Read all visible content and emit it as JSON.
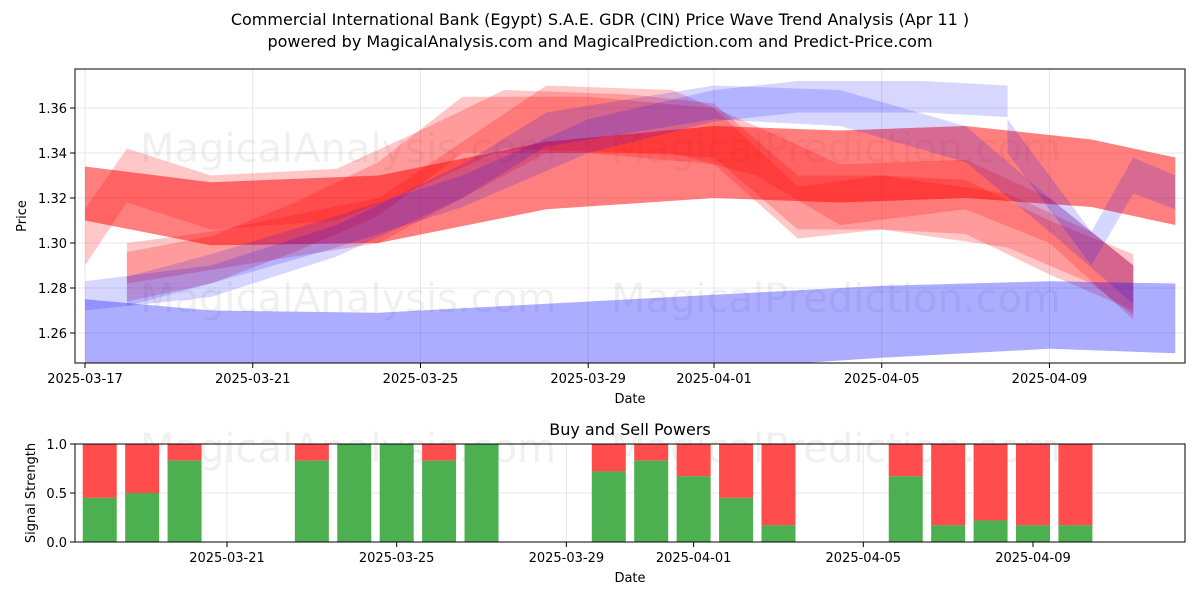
{
  "header": {
    "title": "Commercial International Bank (Egypt) S.A.E. GDR (CIN) Price Wave Trend Analysis (Apr 11 )",
    "subtitle": "powered by MagicalAnalysis.com and MagicalPrediction.com and Predict-Price.com"
  },
  "watermarks": {
    "left": "MagicalAnalysis.com",
    "right": "MagicalPrediction.com"
  },
  "colors": {
    "red_band": "#ff0000",
    "blue_band": "#0000ff",
    "buy_bar": "#4caf50",
    "sell_bar": "#ff4d4d"
  },
  "chart_data": [
    {
      "type": "area",
      "title": "",
      "xlabel": "Date",
      "ylabel": "Price",
      "x_ticks": [
        "2025-03-17",
        "2025-03-21",
        "2025-03-25",
        "2025-03-29",
        "2025-04-01",
        "2025-04-05",
        "2025-04-09"
      ],
      "y_ticks": [
        "1.26",
        "1.28",
        "1.30",
        "1.32",
        "1.34",
        "1.36"
      ],
      "xlim": [
        "2025-03-17",
        "2025-04-12"
      ],
      "ylim": [
        1.246,
        1.376
      ],
      "grid": true,
      "series": [
        {
          "color": "red",
          "upper": [
            [
              "2025-03-17",
              1.334
            ],
            [
              "2025-03-20",
              1.327
            ],
            [
              "2025-03-24",
              1.33
            ],
            [
              "2025-03-28",
              1.345
            ],
            [
              "2025-04-01",
              1.352
            ],
            [
              "2025-04-04",
              1.35
            ],
            [
              "2025-04-07",
              1.352
            ],
            [
              "2025-04-10",
              1.346
            ],
            [
              "2025-04-12",
              1.338
            ]
          ],
          "lower": [
            [
              "2025-03-17",
              1.31
            ],
            [
              "2025-03-20",
              1.299
            ],
            [
              "2025-03-24",
              1.3
            ],
            [
              "2025-03-28",
              1.315
            ],
            [
              "2025-04-01",
              1.32
            ],
            [
              "2025-04-04",
              1.318
            ],
            [
              "2025-04-07",
              1.32
            ],
            [
              "2025-04-10",
              1.316
            ],
            [
              "2025-04-12",
              1.308
            ]
          ]
        },
        {
          "color": "red",
          "upper": [
            [
              "2025-03-18",
              1.3
            ],
            [
              "2025-03-20",
              1.305
            ],
            [
              "2025-03-24",
              1.32
            ],
            [
              "2025-03-26",
              1.345
            ],
            [
              "2025-03-28",
              1.37
            ],
            [
              "2025-03-31",
              1.368
            ],
            [
              "2025-04-02",
              1.352
            ],
            [
              "2025-04-04",
              1.335
            ],
            [
              "2025-04-07",
              1.337
            ],
            [
              "2025-04-09",
              1.32
            ],
            [
              "2025-04-11",
              1.29
            ]
          ],
          "lower": [
            [
              "2025-03-18",
              1.282
            ],
            [
              "2025-03-20",
              1.288
            ],
            [
              "2025-03-24",
              1.3
            ],
            [
              "2025-03-26",
              1.32
            ],
            [
              "2025-03-28",
              1.34
            ],
            [
              "2025-03-31",
              1.34
            ],
            [
              "2025-04-02",
              1.33
            ],
            [
              "2025-04-04",
              1.308
            ],
            [
              "2025-04-07",
              1.315
            ],
            [
              "2025-04-09",
              1.3
            ],
            [
              "2025-04-11",
              1.266
            ]
          ]
        },
        {
          "color": "red",
          "upper": [
            [
              "2025-03-17",
              1.315
            ],
            [
              "2025-03-18",
              1.342
            ],
            [
              "2025-03-20",
              1.33
            ],
            [
              "2025-03-23",
              1.333
            ],
            [
              "2025-03-25",
              1.35
            ],
            [
              "2025-03-27",
              1.368
            ],
            [
              "2025-03-30",
              1.366
            ],
            [
              "2025-04-01",
              1.362
            ],
            [
              "2025-04-03",
              1.33
            ],
            [
              "2025-04-05",
              1.33
            ],
            [
              "2025-04-07",
              1.328
            ],
            [
              "2025-04-09",
              1.31
            ],
            [
              "2025-04-11",
              1.295
            ]
          ],
          "lower": [
            [
              "2025-03-17",
              1.29
            ],
            [
              "2025-03-18",
              1.318
            ],
            [
              "2025-03-20",
              1.306
            ],
            [
              "2025-03-23",
              1.31
            ],
            [
              "2025-03-25",
              1.325
            ],
            [
              "2025-03-27",
              1.342
            ],
            [
              "2025-03-30",
              1.34
            ],
            [
              "2025-04-01",
              1.338
            ],
            [
              "2025-04-03",
              1.306
            ],
            [
              "2025-04-05",
              1.306
            ],
            [
              "2025-04-07",
              1.304
            ],
            [
              "2025-04-09",
              1.286
            ],
            [
              "2025-04-11",
              1.27
            ]
          ]
        },
        {
          "color": "red",
          "upper": [
            [
              "2025-03-18",
              1.296
            ],
            [
              "2025-03-20",
              1.303
            ],
            [
              "2025-03-22",
              1.318
            ],
            [
              "2025-03-24",
              1.336
            ],
            [
              "2025-03-26",
              1.365
            ],
            [
              "2025-03-29",
              1.365
            ],
            [
              "2025-04-01",
              1.36
            ],
            [
              "2025-04-03",
              1.325
            ],
            [
              "2025-04-05",
              1.33
            ],
            [
              "2025-04-08",
              1.322
            ],
            [
              "2025-04-10",
              1.305
            ],
            [
              "2025-04-11",
              1.29
            ]
          ],
          "lower": [
            [
              "2025-03-18",
              1.274
            ],
            [
              "2025-03-20",
              1.282
            ],
            [
              "2025-03-22",
              1.296
            ],
            [
              "2025-03-24",
              1.312
            ],
            [
              "2025-03-26",
              1.34
            ],
            [
              "2025-03-29",
              1.34
            ],
            [
              "2025-04-01",
              1.335
            ],
            [
              "2025-04-03",
              1.302
            ],
            [
              "2025-04-05",
              1.306
            ],
            [
              "2025-04-08",
              1.298
            ],
            [
              "2025-04-10",
              1.282
            ],
            [
              "2025-04-11",
              1.268
            ]
          ]
        },
        {
          "color": "blue",
          "upper": [
            [
              "2025-03-17",
              1.275
            ],
            [
              "2025-03-20",
              1.27
            ],
            [
              "2025-03-24",
              1.269
            ],
            [
              "2025-03-28",
              1.273
            ],
            [
              "2025-04-01",
              1.277
            ],
            [
              "2025-04-05",
              1.281
            ],
            [
              "2025-04-09",
              1.283
            ],
            [
              "2025-04-12",
              1.282
            ]
          ],
          "lower": [
            [
              "2025-03-17",
              1.246
            ],
            [
              "2025-03-20",
              1.242
            ],
            [
              "2025-03-24",
              1.24
            ],
            [
              "2025-03-28",
              1.241
            ],
            [
              "2025-04-01",
              1.244
            ],
            [
              "2025-04-05",
              1.249
            ],
            [
              "2025-04-09",
              1.253
            ],
            [
              "2025-04-12",
              1.251
            ]
          ]
        },
        {
          "color": "blue",
          "upper": [
            [
              "2025-03-17",
              1.283
            ],
            [
              "2025-03-20",
              1.29
            ],
            [
              "2025-03-23",
              1.308
            ],
            [
              "2025-03-26",
              1.335
            ],
            [
              "2025-03-28",
              1.358
            ],
            [
              "2025-04-01",
              1.37
            ],
            [
              "2025-04-04",
              1.368
            ],
            [
              "2025-04-07",
              1.352
            ],
            [
              "2025-04-09",
              1.32
            ],
            [
              "2025-04-11",
              1.29
            ]
          ],
          "lower": [
            [
              "2025-03-17",
              1.27
            ],
            [
              "2025-03-20",
              1.276
            ],
            [
              "2025-03-23",
              1.294
            ],
            [
              "2025-03-26",
              1.32
            ],
            [
              "2025-03-28",
              1.343
            ],
            [
              "2025-04-01",
              1.355
            ],
            [
              "2025-04-04",
              1.352
            ],
            [
              "2025-04-07",
              1.336
            ],
            [
              "2025-04-09",
              1.305
            ],
            [
              "2025-04-11",
              1.273
            ]
          ]
        },
        {
          "color": "blue",
          "upper": [
            [
              "2025-03-18",
              1.285
            ],
            [
              "2025-03-20",
              1.295
            ],
            [
              "2025-03-23",
              1.312
            ],
            [
              "2025-03-26",
              1.33
            ],
            [
              "2025-03-29",
              1.355
            ],
            [
              "2025-04-01",
              1.368
            ],
            [
              "2025-04-03",
              1.372
            ],
            [
              "2025-04-06",
              1.372
            ],
            [
              "2025-04-08",
              1.37
            ]
          ],
          "lower": [
            [
              "2025-03-18",
              1.272
            ],
            [
              "2025-03-20",
              1.282
            ],
            [
              "2025-03-23",
              1.298
            ],
            [
              "2025-03-26",
              1.316
            ],
            [
              "2025-03-29",
              1.34
            ],
            [
              "2025-04-01",
              1.354
            ],
            [
              "2025-04-03",
              1.358
            ],
            [
              "2025-04-06",
              1.358
            ],
            [
              "2025-04-08",
              1.356
            ]
          ]
        },
        {
          "color": "blue",
          "upper": [
            [
              "2025-04-08",
              1.355
            ],
            [
              "2025-04-10",
              1.305
            ],
            [
              "2025-04-11",
              1.338
            ],
            [
              "2025-04-12",
              1.33
            ]
          ],
          "lower": [
            [
              "2025-04-08",
              1.34
            ],
            [
              "2025-04-10",
              1.29
            ],
            [
              "2025-04-11",
              1.322
            ],
            [
              "2025-04-12",
              1.315
            ]
          ]
        }
      ]
    },
    {
      "type": "bar",
      "title": "Buy and Sell Powers",
      "xlabel": "Date",
      "ylabel": "Signal Strength",
      "x_ticks": [
        "2025-03-21",
        "2025-03-25",
        "2025-03-29",
        "2025-04-01",
        "2025-04-05",
        "2025-04-09"
      ],
      "y_ticks": [
        "0.0",
        "0.5",
        "1.0"
      ],
      "ylim": [
        0,
        1
      ],
      "series": [
        {
          "name": "Buy",
          "color": "green"
        },
        {
          "name": "Sell",
          "color": "red"
        }
      ],
      "bars": [
        {
          "date": "2025-03-18",
          "buy": 0.45
        },
        {
          "date": "2025-03-19",
          "buy": 0.5
        },
        {
          "date": "2025-03-20",
          "buy": 0.83
        },
        {
          "date": "2025-03-23",
          "buy": 0.83
        },
        {
          "date": "2025-03-24",
          "buy": 1.0
        },
        {
          "date": "2025-03-25",
          "buy": 1.0
        },
        {
          "date": "2025-03-26",
          "buy": 0.83
        },
        {
          "date": "2025-03-27",
          "buy": 1.0
        },
        {
          "date": "2025-03-30",
          "buy": 0.72
        },
        {
          "date": "2025-03-31",
          "buy": 0.83
        },
        {
          "date": "2025-04-01",
          "buy": 0.67
        },
        {
          "date": "2025-04-02",
          "buy": 0.45
        },
        {
          "date": "2025-04-03",
          "buy": 0.17
        },
        {
          "date": "2025-04-06",
          "buy": 0.67
        },
        {
          "date": "2025-04-07",
          "buy": 0.17
        },
        {
          "date": "2025-04-08",
          "buy": 0.22
        },
        {
          "date": "2025-04-09",
          "buy": 0.17
        },
        {
          "date": "2025-04-10",
          "buy": 0.17
        }
      ]
    }
  ]
}
